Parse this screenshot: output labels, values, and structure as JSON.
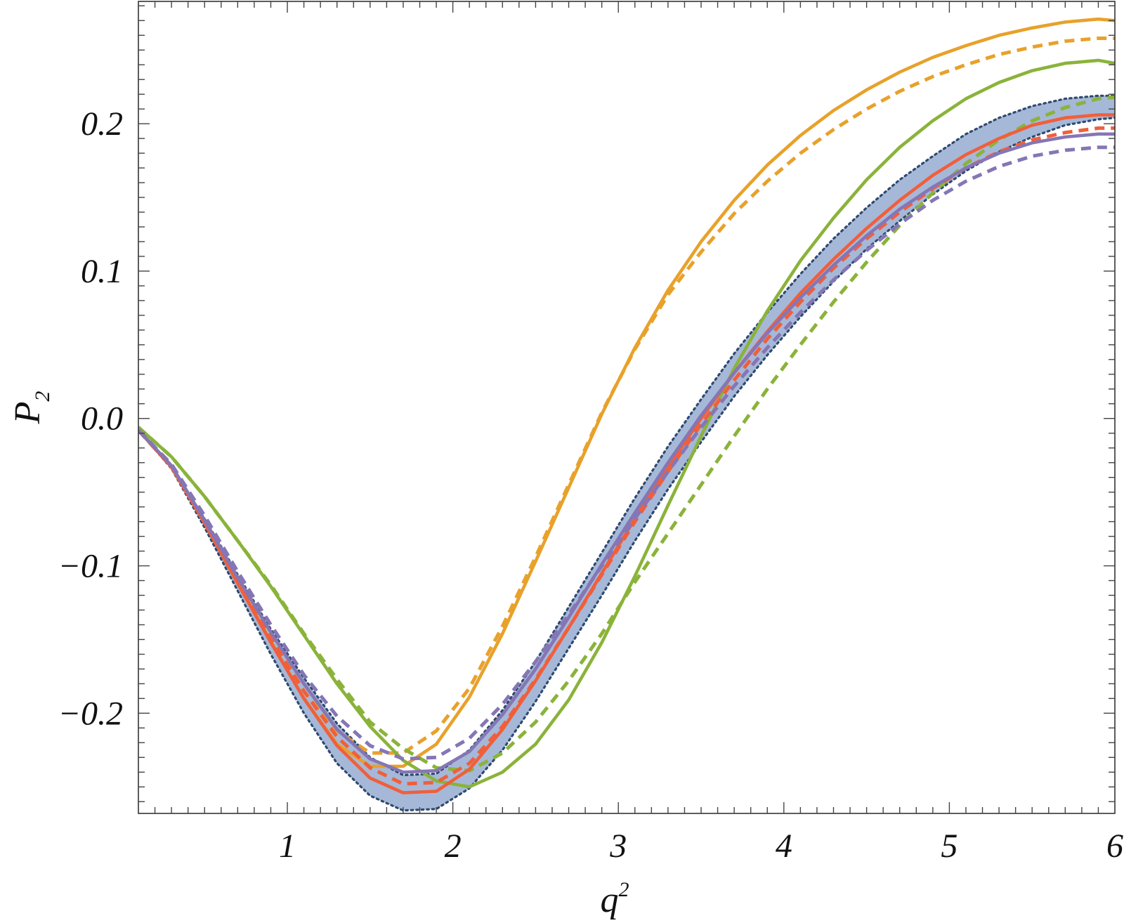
{
  "chart_data": {
    "type": "line",
    "xlabel": "q",
    "xlabel_superscript": "2",
    "ylabel": "P",
    "ylabel_subscript": "2",
    "xlim": [
      0.1,
      6.0
    ],
    "ylim": [
      -0.268,
      0.283
    ],
    "x_ticks": [
      1,
      2,
      3,
      4,
      5,
      6
    ],
    "x_tick_labels": [
      "1",
      "2",
      "3",
      "4",
      "5",
      "6"
    ],
    "y_ticks": [
      -0.2,
      -0.1,
      0.0,
      0.1,
      0.2
    ],
    "y_tick_labels": [
      "−0.2",
      "−0.1",
      "0.0",
      "0.1",
      "0.2"
    ],
    "grid": false,
    "legend": "none",
    "x": [
      0.1,
      0.3,
      0.5,
      0.7,
      0.9,
      1.1,
      1.3,
      1.5,
      1.7,
      1.9,
      2.1,
      2.3,
      2.5,
      2.7,
      2.9,
      3.1,
      3.3,
      3.5,
      3.7,
      3.9,
      4.1,
      4.3,
      4.5,
      4.7,
      4.9,
      5.1,
      5.3,
      5.5,
      5.7,
      5.9,
      6.0
    ],
    "band": {
      "color": "#a6b8d8",
      "edge_color": "#2f4a70",
      "lower": [
        -0.008,
        -0.034,
        -0.074,
        -0.117,
        -0.16,
        -0.2,
        -0.234,
        -0.256,
        -0.266,
        -0.265,
        -0.251,
        -0.225,
        -0.192,
        -0.156,
        -0.12,
        -0.083,
        -0.048,
        -0.016,
        0.015,
        0.043,
        0.069,
        0.093,
        0.115,
        0.134,
        0.152,
        0.168,
        0.181,
        0.191,
        0.199,
        0.203,
        0.204
      ],
      "upper": [
        -0.008,
        -0.032,
        -0.068,
        -0.106,
        -0.143,
        -0.176,
        -0.207,
        -0.23,
        -0.242,
        -0.241,
        -0.225,
        -0.198,
        -0.165,
        -0.128,
        -0.091,
        -0.054,
        -0.019,
        0.013,
        0.044,
        0.072,
        0.098,
        0.122,
        0.143,
        0.162,
        0.178,
        0.193,
        0.204,
        0.212,
        0.217,
        0.219,
        0.219
      ]
    },
    "series": [
      {
        "color": "#e8a12a",
        "style": "solid",
        "values": [
          -0.008,
          -0.032,
          -0.07,
          -0.111,
          -0.151,
          -0.19,
          -0.221,
          -0.236,
          -0.236,
          -0.221,
          -0.189,
          -0.146,
          -0.097,
          -0.047,
          0.003,
          0.048,
          0.087,
          0.12,
          0.148,
          0.172,
          0.192,
          0.209,
          0.223,
          0.235,
          0.245,
          0.253,
          0.26,
          0.265,
          0.269,
          0.271,
          0.27
        ]
      },
      {
        "color": "#e8a12a",
        "style": "dashed",
        "values": [
          -0.008,
          -0.032,
          -0.07,
          -0.11,
          -0.149,
          -0.185,
          -0.212,
          -0.227,
          -0.227,
          -0.212,
          -0.183,
          -0.141,
          -0.094,
          -0.045,
          0.004,
          0.047,
          0.084,
          0.113,
          0.139,
          0.161,
          0.18,
          0.196,
          0.21,
          0.222,
          0.232,
          0.24,
          0.247,
          0.252,
          0.256,
          0.258,
          0.258
        ]
      },
      {
        "color": "#8ab33a",
        "style": "solid",
        "values": [
          -0.006,
          -0.026,
          -0.053,
          -0.083,
          -0.114,
          -0.147,
          -0.18,
          -0.209,
          -0.232,
          -0.246,
          -0.25,
          -0.24,
          -0.221,
          -0.191,
          -0.152,
          -0.107,
          -0.059,
          -0.012,
          0.034,
          0.073,
          0.107,
          0.136,
          0.162,
          0.184,
          0.202,
          0.217,
          0.228,
          0.236,
          0.241,
          0.243,
          0.241
        ]
      },
      {
        "color": "#8ab33a",
        "style": "dashed",
        "values": [
          -0.006,
          -0.026,
          -0.053,
          -0.083,
          -0.113,
          -0.146,
          -0.177,
          -0.206,
          -0.224,
          -0.237,
          -0.239,
          -0.227,
          -0.206,
          -0.178,
          -0.146,
          -0.111,
          -0.078,
          -0.045,
          -0.012,
          0.02,
          0.05,
          0.079,
          0.106,
          0.131,
          0.153,
          0.173,
          0.189,
          0.202,
          0.211,
          0.217,
          0.218
        ]
      },
      {
        "color": "#f05f3b",
        "style": "solid",
        "values": [
          -0.008,
          -0.033,
          -0.071,
          -0.112,
          -0.152,
          -0.19,
          -0.222,
          -0.244,
          -0.254,
          -0.253,
          -0.238,
          -0.211,
          -0.178,
          -0.142,
          -0.105,
          -0.068,
          -0.033,
          0.0,
          0.031,
          0.059,
          0.085,
          0.108,
          0.129,
          0.148,
          0.165,
          0.179,
          0.19,
          0.199,
          0.204,
          0.206,
          0.206
        ]
      },
      {
        "color": "#f05f3b",
        "style": "dashed",
        "values": [
          -0.008,
          -0.033,
          -0.07,
          -0.11,
          -0.149,
          -0.185,
          -0.216,
          -0.237,
          -0.248,
          -0.247,
          -0.234,
          -0.209,
          -0.177,
          -0.142,
          -0.106,
          -0.07,
          -0.036,
          -0.004,
          0.026,
          0.054,
          0.079,
          0.102,
          0.122,
          0.14,
          0.156,
          0.17,
          0.181,
          0.189,
          0.194,
          0.197,
          0.197
        ]
      },
      {
        "color": "#8576b5",
        "style": "solid",
        "values": [
          -0.008,
          -0.032,
          -0.069,
          -0.108,
          -0.145,
          -0.18,
          -0.211,
          -0.231,
          -0.24,
          -0.239,
          -0.226,
          -0.201,
          -0.17,
          -0.135,
          -0.099,
          -0.064,
          -0.03,
          0.002,
          0.031,
          0.058,
          0.082,
          0.104,
          0.124,
          0.142,
          0.157,
          0.17,
          0.18,
          0.187,
          0.191,
          0.193,
          0.193
        ]
      },
      {
        "color": "#8576b5",
        "style": "dashed",
        "values": [
          -0.008,
          -0.031,
          -0.066,
          -0.104,
          -0.14,
          -0.174,
          -0.202,
          -0.222,
          -0.231,
          -0.23,
          -0.217,
          -0.194,
          -0.165,
          -0.133,
          -0.1,
          -0.068,
          -0.036,
          -0.006,
          0.022,
          0.048,
          0.072,
          0.094,
          0.114,
          0.132,
          0.148,
          0.161,
          0.171,
          0.178,
          0.182,
          0.184,
          0.184
        ]
      }
    ]
  }
}
